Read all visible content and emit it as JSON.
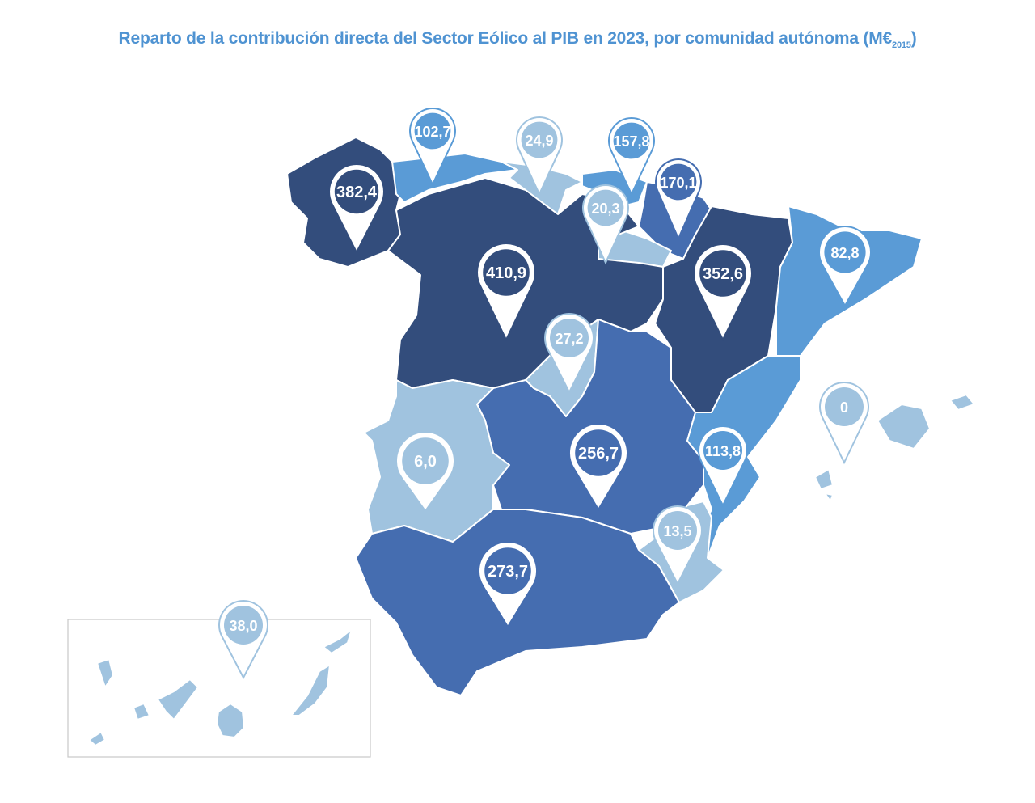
{
  "title": {
    "main": "Reparto de la contribución directa del Sector Eólico al PIB en 2023, por comunidad autónoma (M€",
    "subscript": "2015",
    "close": ")"
  },
  "colors": {
    "dark": "#334d7c",
    "medium": "#456db0",
    "bright": "#5a9bd6",
    "pale": "#a0c3df",
    "title": "#4f93d2"
  },
  "regions": [
    {
      "id": "galicia",
      "value": "382,4",
      "tier": "dark"
    },
    {
      "id": "asturias",
      "value": "102,7",
      "tier": "bright"
    },
    {
      "id": "cantabria",
      "value": "24,9",
      "tier": "pale"
    },
    {
      "id": "paisvasco",
      "value": "157,8",
      "tier": "bright"
    },
    {
      "id": "navarra",
      "value": "170,1",
      "tier": "medium"
    },
    {
      "id": "rioja",
      "value": "20,3",
      "tier": "pale"
    },
    {
      "id": "cyl",
      "value": "410,9",
      "tier": "dark"
    },
    {
      "id": "aragon",
      "value": "352,6",
      "tier": "dark"
    },
    {
      "id": "cataluna",
      "value": "82,8",
      "tier": "bright"
    },
    {
      "id": "madrid",
      "value": "27,2",
      "tier": "pale"
    },
    {
      "id": "clm",
      "value": "256,7",
      "tier": "medium"
    },
    {
      "id": "valenciana",
      "value": "113,8",
      "tier": "bright"
    },
    {
      "id": "baleares",
      "value": "0",
      "tier": "pale"
    },
    {
      "id": "extremadura",
      "value": "6,0",
      "tier": "pale"
    },
    {
      "id": "murcia",
      "value": "13,5",
      "tier": "pale"
    },
    {
      "id": "andalucia",
      "value": "273,7",
      "tier": "medium"
    },
    {
      "id": "canarias",
      "value": "38,0",
      "tier": "pale"
    }
  ]
}
